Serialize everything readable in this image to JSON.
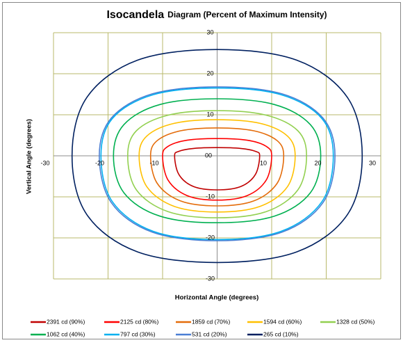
{
  "chart_data": {
    "type": "contour",
    "title": "Isocandela",
    "subtitle": "Diagram (Percent of Maximum Intensity)",
    "xlabel": "Horizontal Angle (degrees)",
    "ylabel": "Vertical Angle (degrees)",
    "xlim": [
      -30,
      30
    ],
    "ylim": [
      -30,
      30
    ],
    "xticks": [
      -30,
      -20,
      -10,
      0,
      10,
      20,
      30
    ],
    "yticks": [
      -30,
      -20,
      -10,
      0,
      10,
      20,
      30
    ],
    "grid": true,
    "legend": "bottom",
    "series": [
      {
        "name": "2391 cd (90%)",
        "color": "#c00000",
        "x": [
          7.8,
          7.0,
          4.3,
          0,
          -4.3,
          -7.0,
          -7.8,
          -7.0,
          -4.3,
          0,
          4.3,
          7.0
        ],
        "y": [
          0,
          1.1,
          1.8,
          2.0,
          1.8,
          1.1,
          0,
          -4.6,
          -7.5,
          -8.3,
          -7.5,
          -4.6
        ]
      },
      {
        "name": "2125 cd (80%)",
        "color": "#ff0000",
        "x": [
          10.0,
          9.0,
          5.5,
          0,
          -5.5,
          -9.0,
          -10.0,
          -9.0,
          -5.5,
          0,
          5.5,
          9.0
        ],
        "y": [
          0,
          2.3,
          3.8,
          4.2,
          3.8,
          2.3,
          0,
          -5.9,
          -9.7,
          -10.8,
          -9.7,
          -5.9
        ]
      },
      {
        "name": "1859 cd (70%)",
        "color": "#e46c0a",
        "x": [
          12.2,
          11.0,
          6.7,
          0,
          -6.7,
          -11.0,
          -12.2,
          -11.0,
          -6.7,
          0,
          6.7,
          11.0
        ],
        "y": [
          0,
          3.7,
          6.1,
          6.8,
          6.1,
          3.7,
          0,
          -6.7,
          -11.0,
          -12.2,
          -11.0,
          -6.7
        ]
      },
      {
        "name": "1594 cd (60%)",
        "color": "#ffc000",
        "x": [
          14.3,
          12.9,
          7.9,
          0,
          -7.9,
          -12.9,
          -14.3,
          -12.9,
          -7.9,
          0,
          7.9,
          12.9
        ],
        "y": [
          0,
          4.8,
          7.9,
          8.8,
          7.9,
          4.8,
          0,
          -7.5,
          -12.3,
          -13.7,
          -12.3,
          -7.5
        ]
      },
      {
        "name": "1328 cd (50%)",
        "color": "#92d050",
        "x": [
          16.4,
          14.8,
          9.0,
          0,
          -9.0,
          -14.8,
          -16.4,
          -14.8,
          -9.0,
          0,
          9.0,
          14.8
        ],
        "y": [
          0,
          6.1,
          9.9,
          11.0,
          9.9,
          6.1,
          0,
          -8.3,
          -13.6,
          -15.1,
          -13.6,
          -8.3
        ]
      },
      {
        "name": "1062 cd (40%)",
        "color": "#00b050",
        "x": [
          19.0,
          17.1,
          10.5,
          0,
          -10.5,
          -17.1,
          -19.0,
          -17.1,
          -10.5,
          0,
          10.5,
          17.1
        ],
        "y": [
          0,
          7.6,
          12.5,
          13.9,
          12.5,
          7.6,
          0,
          -9.0,
          -14.7,
          -16.3,
          -14.7,
          -9.0
        ]
      },
      {
        "name": "797 cd (30%)",
        "color": "#00b0f0",
        "x": [
          21.3,
          19.2,
          11.7,
          0,
          -11.7,
          -19.2,
          -21.3,
          -19.2,
          -11.7,
          0,
          11.7,
          19.2
        ],
        "y": [
          0,
          9.1,
          14.9,
          16.5,
          14.9,
          9.1,
          0,
          -11.2,
          -18.4,
          -20.4,
          -18.4,
          -11.2
        ]
      },
      {
        "name": "531 cd (20%)",
        "color": "#4a7fd4",
        "x": [
          21.6,
          19.4,
          11.9,
          0,
          -11.9,
          -19.4,
          -21.6,
          -19.4,
          -11.9,
          0,
          11.9,
          19.4
        ],
        "y": [
          0,
          9.2,
          15.1,
          16.8,
          15.1,
          9.2,
          0,
          -11.4,
          -18.6,
          -20.7,
          -18.6,
          -11.4
        ]
      },
      {
        "name": "265 cd (10%)",
        "color": "#002060",
        "x": [
          26.6,
          23.9,
          14.6,
          0,
          -14.6,
          -23.9,
          -26.6,
          -23.9,
          -14.6,
          0,
          14.6,
          23.9
        ],
        "y": [
          0,
          14.2,
          23.3,
          25.9,
          23.3,
          14.2,
          0,
          -14.3,
          -23.4,
          -26.0,
          -23.4,
          -14.3
        ]
      }
    ]
  }
}
